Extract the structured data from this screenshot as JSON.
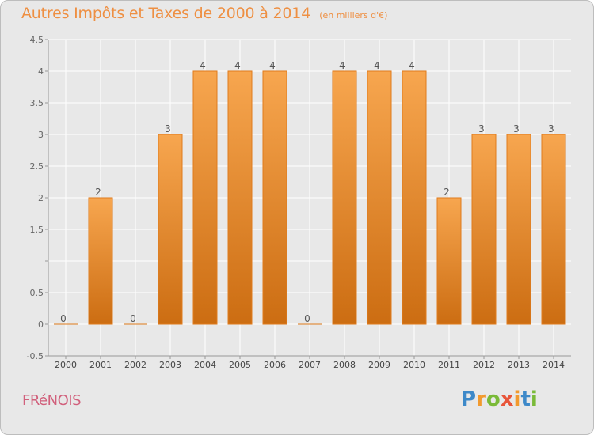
{
  "header": {
    "title": "Autres Impôts et Taxes de 2000 à 2014",
    "subtitle": "(en milliers d'€)"
  },
  "footer": {
    "commune": "FRéNOIS",
    "brand": "Proxiti"
  },
  "colors": {
    "bar_light": "#f7a64f",
    "bar_dark": "#cc6d12",
    "bar_stroke": "#e07b1c",
    "grid": "#ffffff",
    "axis": "#999999",
    "title": "#ee8f42"
  },
  "chart_data": {
    "type": "bar",
    "title": "Autres Impôts et Taxes de 2000 à 2014",
    "subtitle": "(en milliers d'€)",
    "categories": [
      "2000",
      "2001",
      "2002",
      "2003",
      "2004",
      "2005",
      "2006",
      "2007",
      "2008",
      "2009",
      "2010",
      "2011",
      "2012",
      "2013",
      "2014"
    ],
    "values": [
      0,
      2,
      0,
      3,
      4,
      4,
      4,
      0,
      4,
      4,
      4,
      2,
      3,
      3,
      3
    ],
    "data_labels": [
      "0",
      "2",
      "0",
      "3",
      "4",
      "4",
      "4",
      "0",
      "4",
      "4",
      "4",
      "2",
      "3",
      "3",
      "3"
    ],
    "ylim": [
      -0.5,
      4.5
    ],
    "yticks": [
      -0.5,
      0,
      0.5,
      1,
      1.5,
      2,
      2.5,
      3,
      3.5,
      4,
      4.5
    ],
    "ytick_labels": [
      "-0.5",
      "0",
      "0.5",
      "",
      "1.5",
      "2",
      "2.5",
      "3",
      "3.5",
      "4",
      "4.5"
    ],
    "grid": true,
    "xlabel": "",
    "ylabel": ""
  }
}
